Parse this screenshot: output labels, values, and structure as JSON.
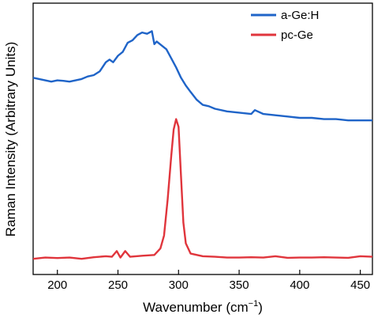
{
  "chart_data": {
    "type": "line",
    "xlabel_base": "Wavenumber (cm",
    "xlabel_sup": "−1",
    "xlabel_close": ")",
    "ylabel": "Raman Intensity (Arbitrary Units)",
    "xlim": [
      180,
      460
    ],
    "ylim": [
      0,
      1
    ],
    "xticks": [
      200,
      250,
      300,
      350,
      400,
      450
    ],
    "yticks_shown": false,
    "grid": false,
    "legend_position": "top-right",
    "series": [
      {
        "name": "a-Ge:H",
        "color": "#1f64c8",
        "x": [
          180,
          185,
          190,
          195,
          200,
          205,
          210,
          215,
          220,
          225,
          230,
          235,
          240,
          243,
          246,
          250,
          254,
          258,
          262,
          266,
          270,
          274,
          278,
          280,
          282,
          286,
          290,
          294,
          298,
          302,
          306,
          310,
          315,
          320,
          325,
          330,
          340,
          350,
          360,
          363,
          370,
          380,
          390,
          400,
          410,
          420,
          430,
          440,
          450,
          460
        ],
        "y": [
          0.73,
          0.725,
          0.72,
          0.715,
          0.72,
          0.718,
          0.715,
          0.72,
          0.725,
          0.735,
          0.74,
          0.755,
          0.79,
          0.8,
          0.79,
          0.815,
          0.83,
          0.865,
          0.875,
          0.895,
          0.905,
          0.9,
          0.91,
          0.86,
          0.87,
          0.855,
          0.84,
          0.805,
          0.77,
          0.73,
          0.7,
          0.675,
          0.645,
          0.625,
          0.62,
          0.61,
          0.6,
          0.595,
          0.59,
          0.605,
          0.59,
          0.585,
          0.58,
          0.575,
          0.575,
          0.57,
          0.57,
          0.565,
          0.565,
          0.565
        ]
      },
      {
        "name": "pc-Ge",
        "color": "#e0353c",
        "x": [
          180,
          190,
          200,
          210,
          220,
          230,
          240,
          245,
          249,
          252,
          256,
          260,
          270,
          280,
          285,
          288,
          291,
          294,
          296,
          298,
          300,
          302,
          304,
          306,
          310,
          320,
          330,
          340,
          350,
          360,
          370,
          380,
          390,
          400,
          410,
          420,
          430,
          440,
          450,
          460
        ],
        "y": [
          0.03,
          0.035,
          0.033,
          0.035,
          0.03,
          0.036,
          0.04,
          0.038,
          0.06,
          0.035,
          0.06,
          0.038,
          0.042,
          0.045,
          0.07,
          0.12,
          0.26,
          0.43,
          0.53,
          0.57,
          0.54,
          0.35,
          0.17,
          0.09,
          0.05,
          0.04,
          0.038,
          0.035,
          0.035,
          0.036,
          0.035,
          0.04,
          0.034,
          0.035,
          0.035,
          0.036,
          0.035,
          0.034,
          0.04,
          0.038
        ]
      }
    ]
  }
}
